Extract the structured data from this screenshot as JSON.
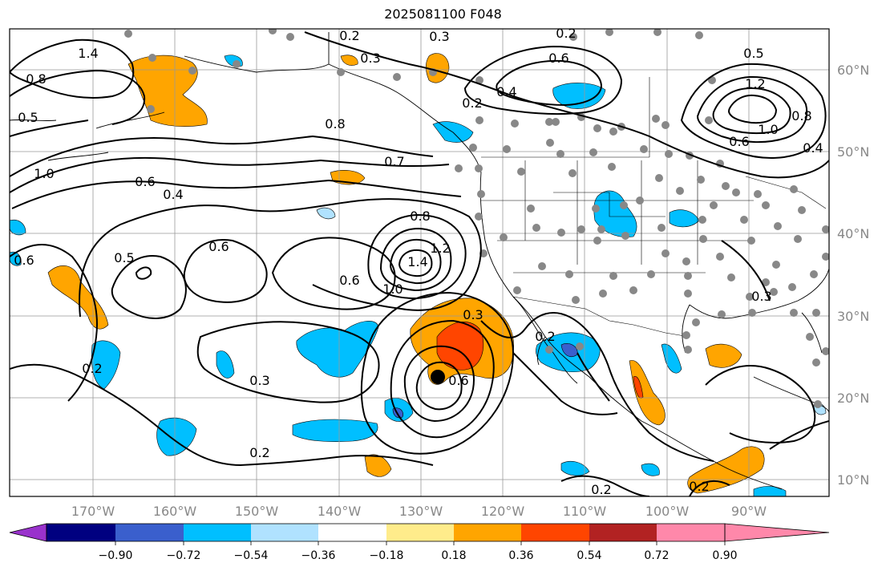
{
  "title": "2025081100 F048",
  "map": {
    "lon_labels": [
      "170°W",
      "160°W",
      "150°W",
      "140°W",
      "130°W",
      "120°W",
      "110°W",
      "100°W",
      "90°W"
    ],
    "lat_labels": [
      "60°N",
      "50°N",
      "40°N",
      "30°N",
      "20°N",
      "10°N"
    ],
    "contour_labels": [
      "0.2",
      "0.3",
      "0.2",
      "1.4",
      "0.8",
      "0.5",
      "0.3",
      "0.6",
      "0.4",
      "0.2",
      "0.8",
      "0.7",
      "1.0",
      "0.6",
      "0.4",
      "0.6",
      "0.8",
      "1.2",
      "0.5",
      "0.6",
      "0.6",
      "1.0",
      "1.4",
      "0.2",
      "0.3",
      "0.6",
      "0.3",
      "0.2",
      "0.2",
      "0.5",
      "1.2",
      "1.0",
      "0.8",
      "0.6",
      "0.4",
      "0.3",
      "0.2",
      "0.2"
    ],
    "marker": "storm-center-dot"
  },
  "colorbar": {
    "tick_labels": [
      "−0.90",
      "−0.72",
      "−0.54",
      "−0.36",
      "−0.18",
      "0.18",
      "0.36",
      "0.54",
      "0.72",
      "0.90"
    ],
    "colors": [
      "#9932cc",
      "#000080",
      "#3a5fcd",
      "#00bfff",
      "#b0e2ff",
      "#ffffff",
      "#ffec8b",
      "#ffa500",
      "#ff4500",
      "#b22222",
      "#ff88aa"
    ]
  }
}
